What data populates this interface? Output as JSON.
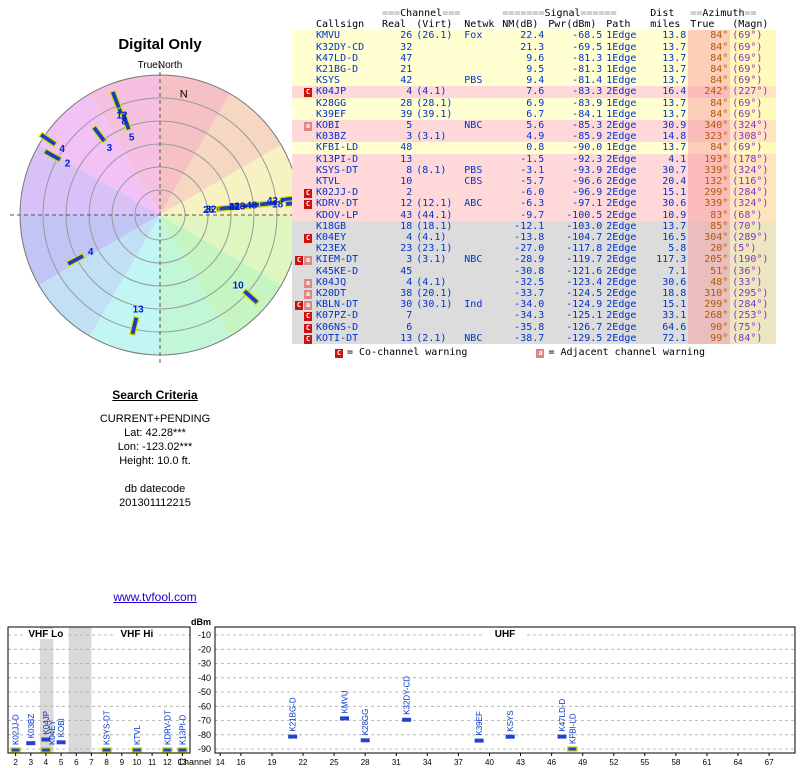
{
  "header": {
    "title": "Digital Only",
    "subtitle": "TrueNorth"
  },
  "table": {
    "grp_channel_pre": "===",
    "grp_channel": "Channel",
    "grp_channel_post": "===",
    "grp_signal_pre": "=======",
    "grp_signal": "Signal",
    "grp_signal_post": "======",
    "grp_dist": "Dist",
    "grp_azimuth_pre": "==",
    "grp_azimuth": "Azimuth",
    "grp_azimuth_post": "==",
    "cols": [
      "Callsign",
      "Real",
      "(Virt)",
      "Netwk",
      "NM(dB)",
      "Pwr(dBm)",
      "Path",
      "miles",
      "True",
      "(Magn)"
    ]
  },
  "legend": [
    {
      "sym": "C",
      "text": "= Co-channel warning"
    },
    {
      "sym": "a",
      "text": "= Adjacent channel warning"
    }
  ],
  "criteria": {
    "title": "Search Criteria",
    "lines": [
      "CURRENT+PENDING",
      "Lat: 42.28***",
      "Lon: -123.02***",
      "Height: 10.0 ft.",
      "",
      "db datecode",
      "201301112215"
    ]
  },
  "link": "www.tvfool.com",
  "chart_data": {
    "type": "table",
    "description": "TV station reception report: stations[] drives the data table, the azimuth radar plot (angle = true azimuth, radius ~ signal strength) and the dBm spectrum bar chart",
    "radar": {
      "north_label": "N",
      "orientation": "TrueNorth"
    },
    "spectrum": {
      "ylabel": "dBm",
      "xlabel": "Channel",
      "ylim": [
        -90,
        -10
      ],
      "dbm_ticks": [
        -10,
        -20,
        -30,
        -40,
        -50,
        -60,
        -70,
        -80,
        -90
      ],
      "sections": [
        {
          "label": "VHF Lo",
          "ch": [
            2,
            6
          ]
        },
        {
          "label": "VHF Hi",
          "ch": [
            7,
            13
          ]
        },
        {
          "label": "UHF",
          "ch": [
            14,
            69
          ]
        }
      ],
      "vhf_ticks": [
        2,
        3,
        4,
        5,
        6,
        7,
        8,
        9,
        10,
        11,
        12,
        13
      ],
      "uhf_ticks": [
        14,
        16,
        19,
        22,
        25,
        28,
        31,
        34,
        37,
        40,
        43,
        46,
        49,
        52,
        55,
        58,
        61,
        64,
        67
      ],
      "shaded_channel_ranges": [
        [
          3.6,
          4.5
        ],
        [
          5.5,
          7.0
        ]
      ]
    },
    "stations": [
      {
        "cs": "KMVU",
        "re": 26,
        "vi": "(26.1)",
        "nw": "Fox",
        "nm": 22.4,
        "pw": -68.5,
        "pa": "1Edge",
        "mi": 13.8,
        "t": "84°",
        "m": "(69°)",
        "az": 84,
        "band": "yellow",
        "warn": [],
        "plot": true,
        "spec": true
      },
      {
        "cs": "K32DY-CD",
        "re": 32,
        "vi": "",
        "nw": "",
        "nm": 21.3,
        "pw": -69.5,
        "pa": "1Edge",
        "mi": 13.7,
        "t": "84°",
        "m": "(69°)",
        "az": 84,
        "band": "yellow",
        "warn": [],
        "plot": true,
        "spec": true
      },
      {
        "cs": "K47LD-D",
        "re": 47,
        "vi": "",
        "nw": "",
        "nm": 9.6,
        "pw": -81.3,
        "pa": "1Edge",
        "mi": 13.7,
        "t": "84°",
        "m": "(69°)",
        "az": 84,
        "band": "yellow",
        "warn": [],
        "plot": true,
        "spec": true
      },
      {
        "cs": "K21BG-D",
        "re": 21,
        "vi": "",
        "nw": "",
        "nm": 9.5,
        "pw": -81.3,
        "pa": "1Edge",
        "mi": 13.7,
        "t": "84°",
        "m": "(69°)",
        "az": 84,
        "band": "yellow",
        "warn": [],
        "plot": true,
        "spec": true
      },
      {
        "cs": "KSYS",
        "re": 42,
        "vi": "",
        "nw": "PBS",
        "nm": 9.4,
        "pw": -81.4,
        "pa": "1Edge",
        "mi": 13.7,
        "t": "84°",
        "m": "(69°)",
        "az": 84,
        "band": "yellow",
        "warn": [],
        "plot": true,
        "spec": true
      },
      {
        "cs": "K04JP",
        "re": 4,
        "vi": "(4.1)",
        "nw": "",
        "nm": 7.6,
        "pw": -83.3,
        "pa": "2Edge",
        "mi": 16.4,
        "t": "242°",
        "m": "(227°)",
        "az": 242,
        "band": "pink",
        "warn": [
          "C"
        ],
        "plot": true,
        "spec": true
      },
      {
        "cs": "K28GG",
        "re": 28,
        "vi": "(28.1)",
        "nw": "",
        "nm": 6.9,
        "pw": -83.9,
        "pa": "1Edge",
        "mi": 13.7,
        "t": "84°",
        "m": "(69°)",
        "az": 84,
        "band": "yellow",
        "warn": [],
        "plot": true,
        "spec": true
      },
      {
        "cs": "K39EF",
        "re": 39,
        "vi": "(39.1)",
        "nw": "",
        "nm": 6.7,
        "pw": -84.1,
        "pa": "1Edge",
        "mi": 13.7,
        "t": "84°",
        "m": "(69°)",
        "az": 84,
        "band": "yellow",
        "warn": [],
        "plot": true,
        "spec": true
      },
      {
        "cs": "KOBI",
        "re": 5,
        "vi": "",
        "nw": "NBC",
        "nm": 5.6,
        "pw": -85.3,
        "pa": "2Edge",
        "mi": 30.9,
        "t": "340°",
        "m": "(324°)",
        "az": 340,
        "band": "pink",
        "warn": [
          "a"
        ],
        "plot": true,
        "spec": true
      },
      {
        "cs": "K03BZ",
        "re": 3,
        "vi": "(3.1)",
        "nw": "",
        "nm": 4.9,
        "pw": -85.9,
        "pa": "2Edge",
        "mi": 14.8,
        "t": "323°",
        "m": "(308°)",
        "az": 323,
        "band": "pink",
        "warn": [],
        "plot": true,
        "spec": true
      },
      {
        "cs": "KFBI-LD",
        "re": 48,
        "vi": "",
        "nw": "",
        "nm": 0.8,
        "pw": -90.0,
        "pa": "1Edge",
        "mi": 13.7,
        "t": "84°",
        "m": "(69°)",
        "az": 84,
        "band": "yellow",
        "warn": [],
        "plot": true,
        "spec": true
      },
      {
        "cs": "K13PI-D",
        "re": 13,
        "vi": "",
        "nw": "",
        "nm": -1.5,
        "pw": -92.3,
        "pa": "2Edge",
        "mi": 4.1,
        "t": "193°",
        "m": "(178°)",
        "az": 193,
        "band": "pink",
        "warn": [],
        "plot": true,
        "spec": true
      },
      {
        "cs": "KSYS-DT",
        "re": 8,
        "vi": "(8.1)",
        "nw": "PBS",
        "nm": -3.1,
        "pw": -93.9,
        "pa": "2Edge",
        "mi": 30.7,
        "t": "339°",
        "m": "(324°)",
        "az": 339,
        "band": "pink",
        "warn": [],
        "plot": true,
        "spec": true
      },
      {
        "cs": "KTVL",
        "re": 10,
        "vi": "",
        "nw": "CBS",
        "nm": -5.7,
        "pw": -96.6,
        "pa": "2Edge",
        "mi": 20.4,
        "t": "132°",
        "m": "(116°)",
        "az": 132,
        "band": "pink",
        "warn": [],
        "plot": true,
        "spec": true
      },
      {
        "cs": "K02JJ-D",
        "re": 2,
        "vi": "",
        "nw": "",
        "nm": -6.0,
        "pw": -96.9,
        "pa": "2Edge",
        "mi": 15.1,
        "t": "299°",
        "m": "(284°)",
        "az": 299,
        "band": "pink",
        "warn": [
          "C"
        ],
        "plot": true,
        "spec": true
      },
      {
        "cs": "KDRV-DT",
        "re": 12,
        "vi": "(12.1)",
        "nw": "ABC",
        "nm": -6.3,
        "pw": -97.1,
        "pa": "2Edge",
        "mi": 30.6,
        "t": "339°",
        "m": "(324°)",
        "az": 339,
        "band": "pink",
        "warn": [
          "C"
        ],
        "plot": true,
        "spec": true
      },
      {
        "cs": "KDOV-LP",
        "re": 43,
        "vi": "(44.1)",
        "nw": "",
        "nm": -9.7,
        "pw": -100.5,
        "pa": "2Edge",
        "mi": 10.9,
        "t": "83°",
        "m": "(68°)",
        "az": 83,
        "band": "pink",
        "warn": [],
        "plot": true,
        "spec": false
      },
      {
        "cs": "K18GB",
        "re": 18,
        "vi": "(18.1)",
        "nw": "",
        "nm": -12.1,
        "pw": -103.0,
        "pa": "2Edge",
        "mi": 13.7,
        "t": "85°",
        "m": "(70°)",
        "az": 85,
        "band": "gray",
        "warn": [],
        "plot": true,
        "spec": false
      },
      {
        "cs": "K04EY",
        "re": 4,
        "vi": "(4.1)",
        "nw": "",
        "nm": -13.8,
        "pw": -104.7,
        "pa": "2Edge",
        "mi": 16.5,
        "t": "304°",
        "m": "(289°)",
        "az": 304,
        "band": "gray",
        "warn": [
          "C"
        ],
        "plot": true,
        "spec": true
      },
      {
        "cs": "K23EX",
        "re": 23,
        "vi": "(23.1)",
        "nw": "",
        "nm": -27.0,
        "pw": -117.8,
        "pa": "2Edge",
        "mi": 5.8,
        "t": "20°",
        "m": "(5°)",
        "az": 20,
        "band": "gray",
        "warn": [],
        "plot": false,
        "spec": false
      },
      {
        "cs": "KIEM-DT",
        "re": 3,
        "vi": "(3.1)",
        "nw": "NBC",
        "nm": -28.9,
        "pw": -119.7,
        "pa": "2Edge",
        "mi": 117.3,
        "t": "205°",
        "m": "(190°)",
        "az": 205,
        "band": "gray",
        "warn": [
          "C",
          "a"
        ],
        "plot": false,
        "spec": false
      },
      {
        "cs": "K45KE-D",
        "re": 45,
        "vi": "",
        "nw": "",
        "nm": -30.8,
        "pw": -121.6,
        "pa": "2Edge",
        "mi": 7.1,
        "t": "51°",
        "m": "(36°)",
        "az": 51,
        "band": "gray",
        "warn": [],
        "plot": false,
        "spec": false
      },
      {
        "cs": "K04JQ",
        "re": 4,
        "vi": "(4.1)",
        "nw": "",
        "nm": -32.5,
        "pw": -123.4,
        "pa": "2Edge",
        "mi": 30.6,
        "t": "48°",
        "m": "(33°)",
        "az": 48,
        "band": "gray",
        "warn": [
          "a"
        ],
        "plot": false,
        "spec": false
      },
      {
        "cs": "K20DT",
        "re": 38,
        "vi": "(20.1)",
        "nw": "",
        "nm": -33.7,
        "pw": -124.5,
        "pa": "2Edge",
        "mi": 18.8,
        "t": "310°",
        "m": "(295°)",
        "az": 310,
        "band": "gray",
        "warn": [
          "a"
        ],
        "plot": false,
        "spec": false
      },
      {
        "cs": "KBLN-DT",
        "re": 30,
        "vi": "(30.1)",
        "nw": "Ind",
        "nm": -34.0,
        "pw": -124.9,
        "pa": "2Edge",
        "mi": 15.1,
        "t": "299°",
        "m": "(284°)",
        "az": 299,
        "band": "gray",
        "warn": [
          "C",
          "a"
        ],
        "plot": false,
        "spec": false
      },
      {
        "cs": "K07PZ-D",
        "re": 7,
        "vi": "",
        "nw": "",
        "nm": -34.3,
        "pw": -125.1,
        "pa": "2Edge",
        "mi": 33.1,
        "t": "268°",
        "m": "(253°)",
        "az": 268,
        "band": "gray",
        "warn": [
          "C"
        ],
        "plot": false,
        "spec": false
      },
      {
        "cs": "K06NS-D",
        "re": 6,
        "vi": "",
        "nw": "",
        "nm": -35.8,
        "pw": -126.7,
        "pa": "2Edge",
        "mi": 64.6,
        "t": "90°",
        "m": "(75°)",
        "az": 90,
        "band": "gray",
        "warn": [
          "C"
        ],
        "plot": false,
        "spec": false
      },
      {
        "cs": "KOTI-DT",
        "re": 13,
        "vi": "(2.1)",
        "nw": "NBC",
        "nm": -38.7,
        "pw": -129.5,
        "pa": "2Edge",
        "mi": 72.1,
        "t": "99°",
        "m": "(84°)",
        "az": 99,
        "band": "gray",
        "warn": [
          "C"
        ],
        "plot": false,
        "spec": false
      }
    ]
  }
}
